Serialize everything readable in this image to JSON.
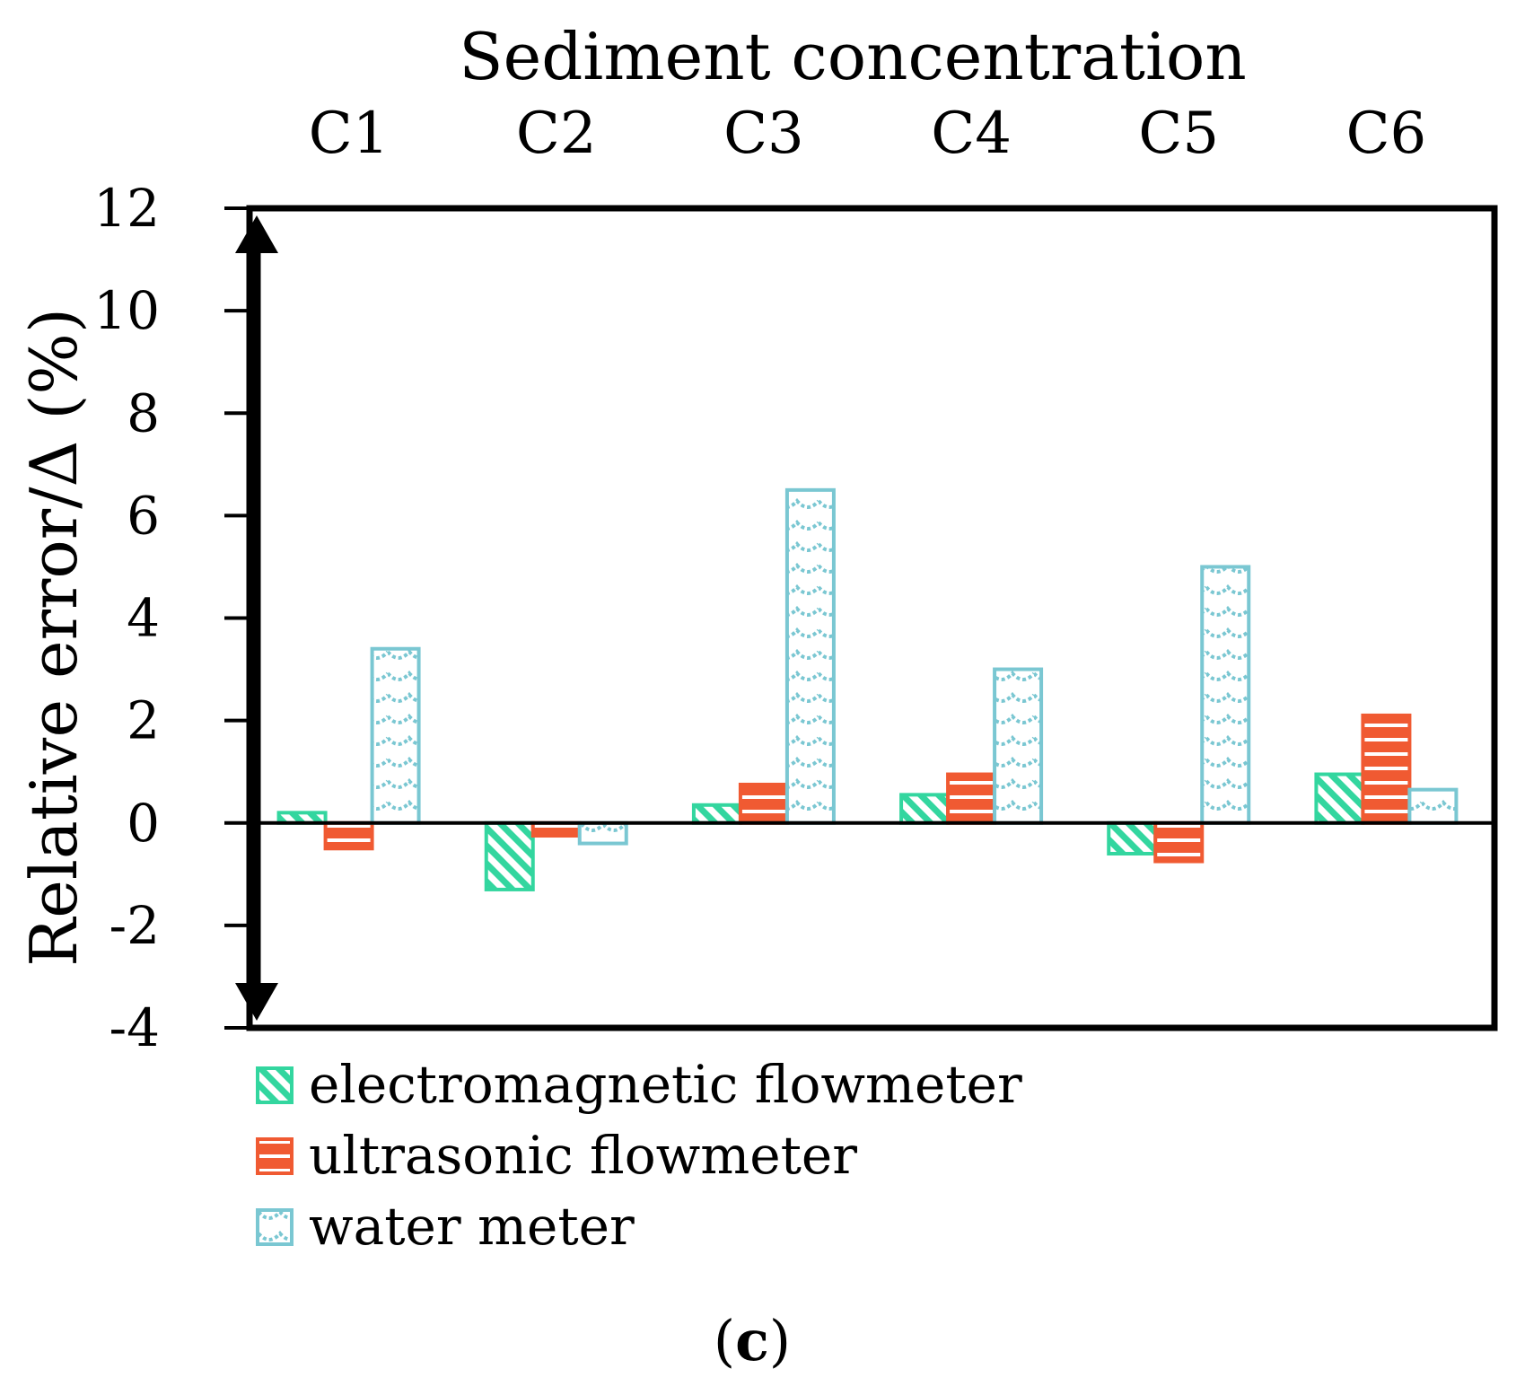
{
  "chart_data": {
    "type": "bar",
    "title": "Sediment concentration",
    "xlabel": "Sediment concentration",
    "ylabel": "Relative error/Δ (%)",
    "categories": [
      "C1",
      "C2",
      "C3",
      "C4",
      "C5",
      "C6"
    ],
    "ylim": [
      -4,
      12
    ],
    "yticks": [
      -4,
      -2,
      0,
      2,
      4,
      6,
      8,
      10,
      12
    ],
    "grid": false,
    "legend_position": "bottom-left",
    "series": [
      {
        "name": "electromagnetic flowmeter",
        "color": "#33d69f",
        "pattern": "diagonal-stripes",
        "values": [
          0.2,
          -1.3,
          0.35,
          0.55,
          -0.6,
          0.95
        ]
      },
      {
        "name": "ultrasonic flowmeter",
        "color": "#f05a32",
        "pattern": "horizontal-stripes",
        "values": [
          -0.5,
          -0.25,
          0.75,
          0.95,
          -0.75,
          2.1
        ]
      },
      {
        "name": "water meter",
        "color": "#7ac7d2",
        "pattern": "waves",
        "values": [
          3.4,
          -0.4,
          6.5,
          3.0,
          5.0,
          0.65
        ]
      }
    ]
  },
  "panel_label": {
    "open": "(",
    "letter": "c",
    "close": ")"
  }
}
